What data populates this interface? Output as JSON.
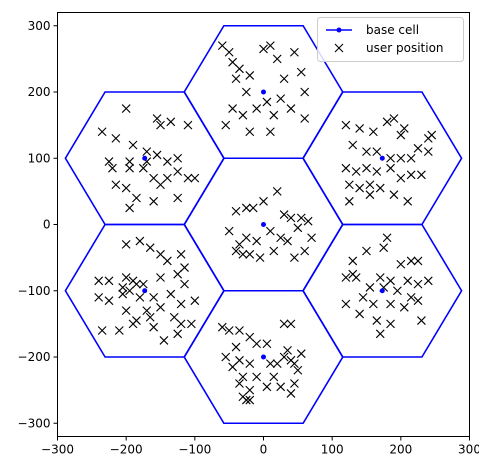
{
  "chart_data": {
    "type": "scatter",
    "title": "",
    "xlabel": "",
    "ylabel": "",
    "xlim": [
      -300,
      300
    ],
    "ylim": [
      -320,
      320
    ],
    "xticks": [
      -300,
      -200,
      -100,
      0,
      100,
      200,
      300
    ],
    "yticks": [
      -300,
      -200,
      -100,
      0,
      100,
      200,
      300
    ],
    "hex_radius": 115.47,
    "grid": false,
    "legend_position": "top-right",
    "legend": [
      {
        "label": "base cell",
        "marker": "line-dot",
        "color": "#0000ff"
      },
      {
        "label": "user position",
        "marker": "x",
        "color": "#000000"
      }
    ],
    "series": [
      {
        "name": "base cell",
        "color": "#0000ff",
        "centers": [
          [
            0,
            0
          ],
          [
            0,
            200
          ],
          [
            173,
            100
          ],
          [
            173,
            -100
          ],
          [
            0,
            -200
          ],
          [
            -173,
            -100
          ],
          [
            -173,
            100
          ]
        ]
      },
      {
        "name": "user position",
        "color": "#000000",
        "points": [
          [
            -40,
            20
          ],
          [
            -25,
            25
          ],
          [
            -15,
            25
          ],
          [
            0,
            35
          ],
          [
            20,
            50
          ],
          [
            30,
            15
          ],
          [
            40,
            10
          ],
          [
            55,
            10
          ],
          [
            65,
            5
          ],
          [
            50,
            -5
          ],
          [
            70,
            -20
          ],
          [
            60,
            -40
          ],
          [
            45,
            -50
          ],
          [
            -10,
            -25
          ],
          [
            -25,
            -20
          ],
          [
            -35,
            -30
          ],
          [
            -50,
            -10
          ],
          [
            -40,
            -40
          ],
          [
            -20,
            -45
          ],
          [
            -5,
            -50
          ],
          [
            15,
            -40
          ],
          [
            25,
            -20
          ],
          [
            10,
            -10
          ],
          [
            35,
            -25
          ],
          [
            -30,
            -45
          ],
          [
            -60,
            270
          ],
          [
            -50,
            260
          ],
          [
            -45,
            245
          ],
          [
            -20,
            225
          ],
          [
            0,
            265
          ],
          [
            10,
            270
          ],
          [
            20,
            250
          ],
          [
            45,
            260
          ],
          [
            55,
            230
          ],
          [
            30,
            220
          ],
          [
            60,
            200
          ],
          [
            60,
            160
          ],
          [
            40,
            175
          ],
          [
            10,
            140
          ],
          [
            -20,
            140
          ],
          [
            -55,
            150
          ],
          [
            -45,
            175
          ],
          [
            -30,
            165
          ],
          [
            -10,
            175
          ],
          [
            15,
            165
          ],
          [
            25,
            190
          ],
          [
            -40,
            220
          ],
          [
            -35,
            235
          ],
          [
            5,
            185
          ],
          [
            -25,
            200
          ],
          [
            -200,
            175
          ],
          [
            -155,
            160
          ],
          [
            -150,
            150
          ],
          [
            -135,
            155
          ],
          [
            -110,
            150
          ],
          [
            -235,
            140
          ],
          [
            -215,
            130
          ],
          [
            -190,
            120
          ],
          [
            -170,
            110
          ],
          [
            -155,
            105
          ],
          [
            -140,
            95
          ],
          [
            -125,
            100
          ],
          [
            -125,
            80
          ],
          [
            -140,
            70
          ],
          [
            -110,
            70
          ],
          [
            -100,
            70
          ],
          [
            -225,
            95
          ],
          [
            -195,
            95
          ],
          [
            -170,
            95
          ],
          [
            -220,
            85
          ],
          [
            -195,
            85
          ],
          [
            -175,
            85
          ],
          [
            -160,
            70
          ],
          [
            -150,
            60
          ],
          [
            -200,
            55
          ],
          [
            -215,
            60
          ],
          [
            -185,
            40
          ],
          [
            -160,
            35
          ],
          [
            -195,
            25
          ],
          [
            -125,
            40
          ],
          [
            120,
            150
          ],
          [
            140,
            145
          ],
          [
            160,
            140
          ],
          [
            180,
            155
          ],
          [
            190,
            160
          ],
          [
            205,
            145
          ],
          [
            225,
            115
          ],
          [
            240,
            130
          ],
          [
            245,
            135
          ],
          [
            200,
            135
          ],
          [
            130,
            120
          ],
          [
            150,
            110
          ],
          [
            165,
            110
          ],
          [
            185,
            100
          ],
          [
            200,
            100
          ],
          [
            215,
            100
          ],
          [
            240,
            110
          ],
          [
            120,
            85
          ],
          [
            135,
            80
          ],
          [
            150,
            85
          ],
          [
            165,
            80
          ],
          [
            185,
            85
          ],
          [
            200,
            70
          ],
          [
            215,
            75
          ],
          [
            230,
            75
          ],
          [
            125,
            60
          ],
          [
            140,
            55
          ],
          [
            155,
            60
          ],
          [
            170,
            55
          ],
          [
            190,
            45
          ],
          [
            125,
            35
          ],
          [
            210,
            35
          ],
          [
            155,
            45
          ],
          [
            -200,
            -30
          ],
          [
            -180,
            -25
          ],
          [
            -165,
            -35
          ],
          [
            -150,
            -45
          ],
          [
            -140,
            -55
          ],
          [
            -120,
            -45
          ],
          [
            -115,
            -65
          ],
          [
            -240,
            -85
          ],
          [
            -225,
            -85
          ],
          [
            -200,
            -80
          ],
          [
            -190,
            -85
          ],
          [
            -175,
            -90
          ],
          [
            -150,
            -80
          ],
          [
            -125,
            -75
          ],
          [
            -115,
            -90
          ],
          [
            -205,
            -95
          ],
          [
            -195,
            -100
          ],
          [
            -185,
            -90
          ],
          [
            -160,
            -110
          ],
          [
            -135,
            -105
          ],
          [
            -240,
            -110
          ],
          [
            -225,
            -115
          ],
          [
            -205,
            -105
          ],
          [
            -180,
            -110
          ],
          [
            -170,
            -130
          ],
          [
            -150,
            -125
          ],
          [
            -120,
            -120
          ],
          [
            -100,
            -115
          ],
          [
            -200,
            -130
          ],
          [
            -185,
            -145
          ],
          [
            -165,
            -140
          ],
          [
            -130,
            -140
          ],
          [
            -120,
            -150
          ],
          [
            -210,
            -160
          ],
          [
            -160,
            -155
          ],
          [
            -125,
            -165
          ],
          [
            -105,
            -150
          ],
          [
            -235,
            -160
          ],
          [
            -190,
            -150
          ],
          [
            -145,
            -175
          ],
          [
            180,
            -20
          ],
          [
            175,
            -35
          ],
          [
            150,
            -40
          ],
          [
            130,
            -55
          ],
          [
            200,
            -60
          ],
          [
            215,
            -55
          ],
          [
            225,
            -55
          ],
          [
            130,
            -75
          ],
          [
            120,
            -80
          ],
          [
            135,
            -80
          ],
          [
            170,
            -80
          ],
          [
            185,
            -85
          ],
          [
            210,
            -85
          ],
          [
            225,
            -90
          ],
          [
            240,
            -85
          ],
          [
            155,
            -95
          ],
          [
            175,
            -95
          ],
          [
            195,
            -100
          ],
          [
            215,
            -110
          ],
          [
            225,
            -115
          ],
          [
            145,
            -110
          ],
          [
            160,
            -120
          ],
          [
            185,
            -120
          ],
          [
            205,
            -125
          ],
          [
            120,
            -120
          ],
          [
            140,
            -135
          ],
          [
            165,
            -145
          ],
          [
            185,
            -150
          ],
          [
            230,
            -145
          ],
          [
            170,
            -165
          ],
          [
            -60,
            -155
          ],
          [
            -50,
            -160
          ],
          [
            -35,
            -160
          ],
          [
            -20,
            -170
          ],
          [
            -10,
            -180
          ],
          [
            5,
            -180
          ],
          [
            35,
            -190
          ],
          [
            40,
            -205
          ],
          [
            30,
            -200
          ],
          [
            20,
            -210
          ],
          [
            -40,
            -185
          ],
          [
            -55,
            -200
          ],
          [
            -35,
            -205
          ],
          [
            -20,
            -210
          ],
          [
            10,
            -210
          ],
          [
            50,
            -220
          ],
          [
            45,
            -210
          ],
          [
            -45,
            -215
          ],
          [
            -30,
            -230
          ],
          [
            -10,
            -230
          ],
          [
            15,
            -230
          ],
          [
            25,
            -245
          ],
          [
            45,
            -240
          ],
          [
            -35,
            -240
          ],
          [
            -20,
            -250
          ],
          [
            5,
            -245
          ],
          [
            40,
            -255
          ],
          [
            -30,
            -260
          ],
          [
            -25,
            -265
          ],
          [
            -20,
            -265
          ],
          [
            30,
            -150
          ],
          [
            40,
            -150
          ],
          [
            55,
            -195
          ]
        ]
      }
    ]
  }
}
